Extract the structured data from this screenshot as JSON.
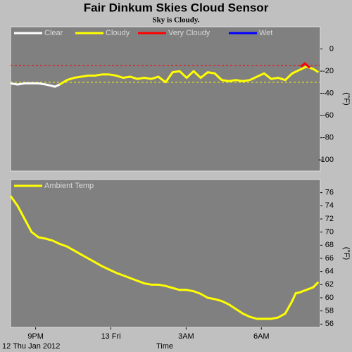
{
  "header": {
    "title": "Fair Dinkum Skies Cloud Sensor",
    "subtitle": "Sky is Cloudy."
  },
  "chart_data": [
    {
      "type": "line",
      "ylabel": "(°F)",
      "xlim": [
        20,
        32.35
      ],
      "ylim": [
        -110,
        20
      ],
      "yticks": [
        0,
        -20,
        -40,
        -60,
        -80,
        -100
      ],
      "reference_lines": [
        {
          "value": -15,
          "color": "#ff0000"
        },
        {
          "value": -30,
          "color": "#ffff00"
        }
      ],
      "series": [
        {
          "name": "Clear",
          "color": "#ffffff",
          "x": [
            20.0,
            20.28,
            20.56,
            20.84,
            21.12,
            21.4,
            21.6,
            21.77,
            21.96
          ],
          "values": [
            -31,
            -32,
            -31,
            -31,
            -31,
            -32,
            -33,
            -34,
            -32
          ]
        },
        {
          "name": "Cloudy",
          "color": "#ffff00",
          "x": [
            21.96,
            22.25,
            22.53,
            22.81,
            23.09,
            23.37,
            23.65,
            23.93,
            24.21,
            24.49,
            24.77,
            25.05,
            25.33,
            25.61,
            25.89,
            26.18,
            26.46,
            26.74,
            27.02,
            27.3,
            27.58,
            27.86,
            28.14,
            28.42,
            28.7,
            28.98,
            29.26,
            29.54,
            29.82,
            30.11,
            30.39,
            30.67,
            30.95,
            31.23,
            31.51,
            31.79,
            32.07,
            32.27
          ],
          "values": [
            -32,
            -28,
            -26,
            -25,
            -24,
            -24,
            -23,
            -23,
            -24,
            -26,
            -25,
            -27,
            -26,
            -27,
            -25,
            -30,
            -21,
            -20,
            -26,
            -20,
            -26,
            -21,
            -22,
            -28,
            -29,
            -28,
            -29,
            -28,
            -25,
            -22,
            -27,
            -26,
            -28,
            -22,
            -19,
            -16,
            -18,
            -21
          ]
        },
        {
          "name": "Very Cloudy",
          "color": "#ff0000",
          "x": [
            31.57,
            31.73,
            31.93
          ],
          "values": [
            -16,
            -13,
            -17
          ]
        },
        {
          "name": "Wet",
          "color": "#0000ff",
          "x": [],
          "values": []
        }
      ]
    },
    {
      "type": "line",
      "ylabel": "(°F)",
      "xlabel": "Time",
      "x_date_label": "12 Thu Jan 2012",
      "xlim": [
        20,
        32.35
      ],
      "ylim": [
        55.5,
        78
      ],
      "xticks": [
        {
          "value": 21,
          "label": "9PM"
        },
        {
          "value": 24,
          "label": "13 Fri"
        },
        {
          "value": 27,
          "label": "3AM"
        },
        {
          "value": 30,
          "label": "6AM"
        }
      ],
      "yticks": [
        56,
        58,
        60,
        62,
        64,
        66,
        68,
        70,
        72,
        74,
        76
      ],
      "series": [
        {
          "name": "Ambient Temp",
          "color": "#ffff00",
          "x": [
            20.0,
            20.28,
            20.56,
            20.84,
            21.12,
            21.4,
            21.68,
            21.96,
            22.25,
            22.53,
            22.81,
            23.09,
            23.37,
            23.65,
            23.93,
            24.21,
            24.49,
            24.77,
            25.05,
            25.33,
            25.61,
            25.89,
            26.18,
            26.46,
            26.74,
            27.02,
            27.3,
            27.58,
            27.86,
            28.14,
            28.42,
            28.7,
            28.98,
            29.26,
            29.54,
            29.82,
            30.11,
            30.39,
            30.67,
            30.95,
            31.23,
            31.37,
            31.51,
            31.79,
            32.07,
            32.27
          ],
          "values": [
            75.5,
            74,
            72,
            70,
            69.2,
            69,
            68.7,
            68.2,
            67.8,
            67.2,
            66.6,
            66,
            65.4,
            64.8,
            64.3,
            63.8,
            63.4,
            63,
            62.6,
            62.2,
            62,
            62,
            61.8,
            61.5,
            61.2,
            61.2,
            61,
            60.6,
            60,
            59.8,
            59.5,
            59,
            58.3,
            57.6,
            57.1,
            56.8,
            56.8,
            56.8,
            57,
            57.6,
            59.5,
            60.7,
            60.8,
            61.2,
            61.6,
            62.4
          ]
        }
      ]
    }
  ]
}
